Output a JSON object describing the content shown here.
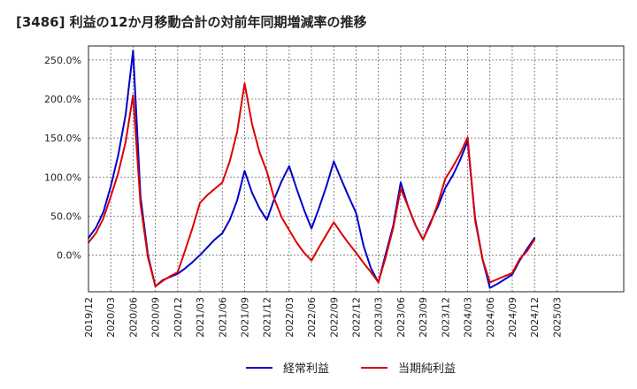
{
  "chart_data": {
    "type": "line",
    "title": "[3486]  利益の12か月移動合計の対前年同期増減率の推移",
    "xlabel": "",
    "ylabel": "",
    "ylim": [
      -47,
      268
    ],
    "grid": true,
    "legend_position": "bottom-center",
    "y_ticks": [
      {
        "value": 250,
        "label": "250.0%"
      },
      {
        "value": 200,
        "label": "200.0%"
      },
      {
        "value": 150,
        "label": "150.0%"
      },
      {
        "value": 100,
        "label": "100.0%"
      },
      {
        "value": 50,
        "label": "50.0%"
      },
      {
        "value": 0,
        "label": "0.0%"
      }
    ],
    "x_range": [
      0,
      72
    ],
    "x_ticks": [
      {
        "t": 0,
        "label": "2019/12"
      },
      {
        "t": 3,
        "label": "2020/03"
      },
      {
        "t": 6,
        "label": "2020/06"
      },
      {
        "t": 9,
        "label": "2020/09"
      },
      {
        "t": 12,
        "label": "2020/12"
      },
      {
        "t": 15,
        "label": "2021/03"
      },
      {
        "t": 18,
        "label": "2021/06"
      },
      {
        "t": 21,
        "label": "2021/09"
      },
      {
        "t": 24,
        "label": "2021/12"
      },
      {
        "t": 27,
        "label": "2022/03"
      },
      {
        "t": 30,
        "label": "2022/06"
      },
      {
        "t": 33,
        "label": "2022/09"
      },
      {
        "t": 36,
        "label": "2022/12"
      },
      {
        "t": 39,
        "label": "2023/03"
      },
      {
        "t": 42,
        "label": "2023/06"
      },
      {
        "t": 45,
        "label": "2023/09"
      },
      {
        "t": 48,
        "label": "2023/12"
      },
      {
        "t": 51,
        "label": "2024/03"
      },
      {
        "t": 54,
        "label": "2024/06"
      },
      {
        "t": 57,
        "label": "2024/09"
      },
      {
        "t": 60,
        "label": "2024/12"
      },
      {
        "t": 63,
        "label": "2025/03"
      }
    ],
    "series": [
      {
        "name": "経常利益",
        "color": "#0000cc",
        "points": [
          [
            0,
            22
          ],
          [
            1,
            35
          ],
          [
            2,
            55
          ],
          [
            3,
            88
          ],
          [
            4,
            128
          ],
          [
            5,
            180
          ],
          [
            6,
            262
          ],
          [
            7,
            75
          ],
          [
            8,
            0
          ],
          [
            9,
            -40
          ],
          [
            10,
            -32
          ],
          [
            11,
            -28
          ],
          [
            12,
            -24
          ],
          [
            13,
            -17
          ],
          [
            14,
            -9
          ],
          [
            15,
            0
          ],
          [
            16,
            10
          ],
          [
            17,
            20
          ],
          [
            18,
            28
          ],
          [
            19,
            45
          ],
          [
            20,
            70
          ],
          [
            21,
            108
          ],
          [
            22,
            80
          ],
          [
            23,
            60
          ],
          [
            24,
            45
          ],
          [
            25,
            72
          ],
          [
            26,
            95
          ],
          [
            27,
            114
          ],
          [
            28,
            85
          ],
          [
            29,
            58
          ],
          [
            30,
            34
          ],
          [
            31,
            60
          ],
          [
            32,
            88
          ],
          [
            33,
            120
          ],
          [
            34,
            97
          ],
          [
            35,
            75
          ],
          [
            36,
            54
          ],
          [
            37,
            12
          ],
          [
            38,
            -17
          ],
          [
            39,
            -35
          ],
          [
            40,
            2
          ],
          [
            41,
            38
          ],
          [
            42,
            93
          ],
          [
            43,
            62
          ],
          [
            44,
            38
          ],
          [
            45,
            20
          ],
          [
            46,
            42
          ],
          [
            47,
            62
          ],
          [
            48,
            86
          ],
          [
            49,
            102
          ],
          [
            50,
            122
          ],
          [
            51,
            146
          ],
          [
            52,
            48
          ],
          [
            53,
            -5
          ],
          [
            54,
            -42
          ],
          [
            55,
            -37
          ],
          [
            56,
            -31
          ],
          [
            57,
            -25
          ],
          [
            58,
            -7
          ],
          [
            59,
            8
          ],
          [
            60,
            22
          ]
        ]
      },
      {
        "name": "当期純利益",
        "color": "#dd0000",
        "points": [
          [
            0,
            16
          ],
          [
            1,
            28
          ],
          [
            2,
            47
          ],
          [
            3,
            75
          ],
          [
            4,
            105
          ],
          [
            5,
            145
          ],
          [
            6,
            205
          ],
          [
            7,
            65
          ],
          [
            8,
            -3
          ],
          [
            9,
            -40
          ],
          [
            10,
            -33
          ],
          [
            11,
            -27
          ],
          [
            12,
            -22
          ],
          [
            13,
            6
          ],
          [
            14,
            35
          ],
          [
            15,
            67
          ],
          [
            16,
            77
          ],
          [
            17,
            85
          ],
          [
            18,
            93
          ],
          [
            19,
            120
          ],
          [
            20,
            158
          ],
          [
            21,
            220
          ],
          [
            22,
            168
          ],
          [
            23,
            132
          ],
          [
            24,
            107
          ],
          [
            25,
            72
          ],
          [
            26,
            48
          ],
          [
            27,
            32
          ],
          [
            28,
            16
          ],
          [
            29,
            3
          ],
          [
            30,
            -7
          ],
          [
            31,
            10
          ],
          [
            32,
            26
          ],
          [
            33,
            42
          ],
          [
            34,
            28
          ],
          [
            35,
            15
          ],
          [
            36,
            3
          ],
          [
            37,
            -10
          ],
          [
            38,
            -22
          ],
          [
            39,
            -35
          ],
          [
            40,
            -2
          ],
          [
            41,
            35
          ],
          [
            42,
            85
          ],
          [
            43,
            62
          ],
          [
            44,
            38
          ],
          [
            45,
            20
          ],
          [
            46,
            40
          ],
          [
            47,
            66
          ],
          [
            48,
            98
          ],
          [
            49,
            113
          ],
          [
            50,
            130
          ],
          [
            51,
            151
          ],
          [
            52,
            45
          ],
          [
            53,
            -5
          ],
          [
            54,
            -35
          ],
          [
            55,
            -31
          ],
          [
            56,
            -27
          ],
          [
            57,
            -23
          ],
          [
            58,
            -5
          ],
          [
            59,
            5
          ],
          [
            60,
            20
          ]
        ]
      }
    ]
  }
}
